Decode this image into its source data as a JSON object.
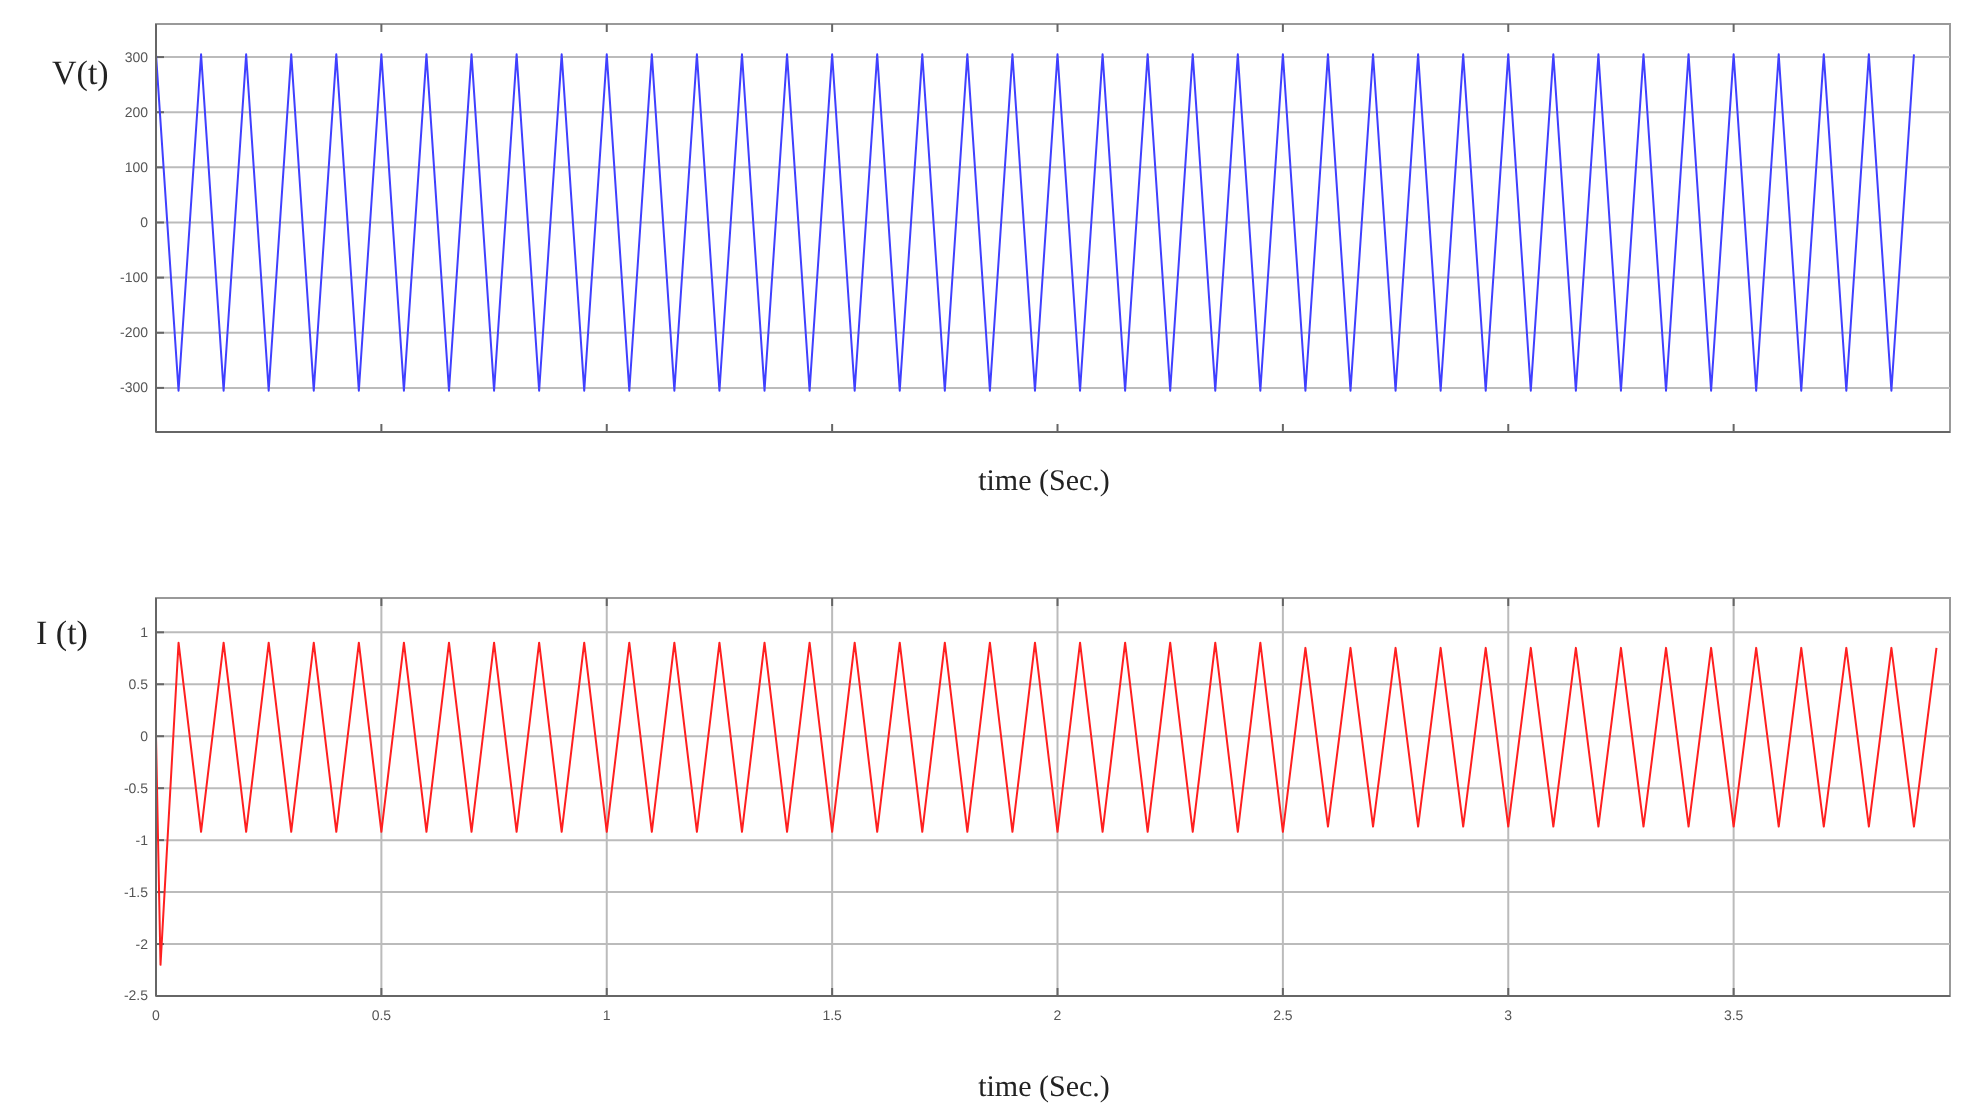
{
  "chart_data": [
    {
      "type": "line",
      "ylabel": "V(t)",
      "xlabel": "time (Sec.)",
      "xlim": [
        0,
        3.98
      ],
      "xticks": [
        0,
        0.5,
        1,
        1.5,
        2,
        2.5,
        3,
        3.5
      ],
      "ylim": [
        -380,
        360
      ],
      "yticks": [
        300,
        200,
        100,
        0,
        -100,
        -200,
        -300
      ],
      "grid": "y",
      "tick_labels": "y",
      "x": [
        0,
        0.05,
        0.1,
        0.15,
        0.2,
        0.25,
        0.3,
        0.35,
        0.4,
        0.45,
        0.5,
        0.55,
        0.6,
        0.65,
        0.7,
        0.75,
        0.8,
        0.85,
        0.9,
        0.95,
        1,
        1.05,
        1.1,
        1.15,
        1.2,
        1.25,
        1.3,
        1.35,
        1.4,
        1.45,
        1.5,
        1.55,
        1.6,
        1.65,
        1.7,
        1.75,
        1.8,
        1.85,
        1.9,
        1.95,
        2,
        2.05,
        2.1,
        2.15,
        2.2,
        2.25,
        2.3,
        2.35,
        2.4,
        2.45,
        2.5,
        2.55,
        2.6,
        2.65,
        2.7,
        2.75,
        2.8,
        2.85,
        2.9,
        2.95,
        3,
        3.05,
        3.1,
        3.15,
        3.2,
        3.25,
        3.3,
        3.35,
        3.4,
        3.45,
        3.5,
        3.55,
        3.6,
        3.65,
        3.7,
        3.75,
        3.8,
        3.85,
        3.9
      ],
      "series": [
        {
          "color": "#4040ff",
          "values": [
            305,
            -305,
            305,
            -305,
            305,
            -305,
            305,
            -305,
            305,
            -305,
            305,
            -305,
            305,
            -305,
            305,
            -305,
            305,
            -305,
            305,
            -305,
            305,
            -305,
            305,
            -305,
            305,
            -305,
            305,
            -305,
            305,
            -305,
            305,
            -305,
            305,
            -305,
            305,
            -305,
            305,
            -305,
            305,
            -305,
            305,
            -305,
            305,
            -305,
            305,
            -305,
            305,
            -305,
            305,
            -305,
            305,
            -305,
            305,
            -305,
            305,
            -305,
            305,
            -305,
            305,
            -305,
            305,
            -305,
            305,
            -305,
            305,
            -305,
            305,
            -305,
            305,
            -305,
            305,
            -305,
            305,
            -305,
            305,
            -305,
            305,
            -305,
            305
          ]
        }
      ]
    },
    {
      "type": "line",
      "ylabel": "I (t)",
      "xlabel": "time (Sec.)",
      "xlim": [
        0,
        3.98
      ],
      "xticks": [
        0,
        0.5,
        1,
        1.5,
        2,
        2.5,
        3,
        3.5
      ],
      "ylim": [
        -2.5,
        1.33
      ],
      "yticks": [
        1,
        0.5,
        0,
        -0.5,
        -1,
        -1.5,
        -2,
        -2.5
      ],
      "grid": true,
      "x": [
        0,
        0.01,
        0.05,
        0.1,
        0.15,
        0.2,
        0.25,
        0.3,
        0.35,
        0.4,
        0.45,
        0.5,
        0.55,
        0.6,
        0.65,
        0.7,
        0.75,
        0.8,
        0.85,
        0.9,
        0.95,
        1,
        1.05,
        1.1,
        1.15,
        1.2,
        1.25,
        1.3,
        1.35,
        1.4,
        1.45,
        1.5,
        1.55,
        1.6,
        1.65,
        1.7,
        1.75,
        1.8,
        1.85,
        1.9,
        1.95,
        2,
        2.05,
        2.1,
        2.15,
        2.2,
        2.25,
        2.3,
        2.35,
        2.4,
        2.45,
        2.5,
        2.55,
        2.6,
        2.65,
        2.7,
        2.75,
        2.8,
        2.85,
        2.9,
        2.95,
        3,
        3.05,
        3.1,
        3.15,
        3.2,
        3.25,
        3.3,
        3.35,
        3.4,
        3.45,
        3.5,
        3.55,
        3.6,
        3.65,
        3.7,
        3.75,
        3.8,
        3.85,
        3.9,
        3.95
      ],
      "series": [
        {
          "color": "#ff2020",
          "values": [
            0,
            -2.2,
            0.9,
            -0.92,
            0.9,
            -0.92,
            0.9,
            -0.92,
            0.9,
            -0.92,
            0.9,
            -0.92,
            0.9,
            -0.92,
            0.9,
            -0.92,
            0.9,
            -0.92,
            0.9,
            -0.92,
            0.9,
            -0.92,
            0.9,
            -0.92,
            0.9,
            -0.92,
            0.9,
            -0.92,
            0.9,
            -0.92,
            0.9,
            -0.92,
            0.9,
            -0.92,
            0.9,
            -0.92,
            0.9,
            -0.92,
            0.9,
            -0.92,
            0.9,
            -0.92,
            0.9,
            -0.92,
            0.9,
            -0.92,
            0.9,
            -0.92,
            0.9,
            -0.92,
            0.9,
            -0.92,
            0.85,
            -0.87,
            0.85,
            -0.87,
            0.85,
            -0.87,
            0.85,
            -0.87,
            0.85,
            -0.87,
            0.85,
            -0.87,
            0.85,
            -0.87,
            0.85,
            -0.87,
            0.85,
            -0.87,
            0.85,
            -0.87,
            0.85,
            -0.87,
            0.85,
            -0.87,
            0.85,
            -0.87,
            0.85,
            -0.87,
            0.85
          ]
        }
      ]
    }
  ]
}
